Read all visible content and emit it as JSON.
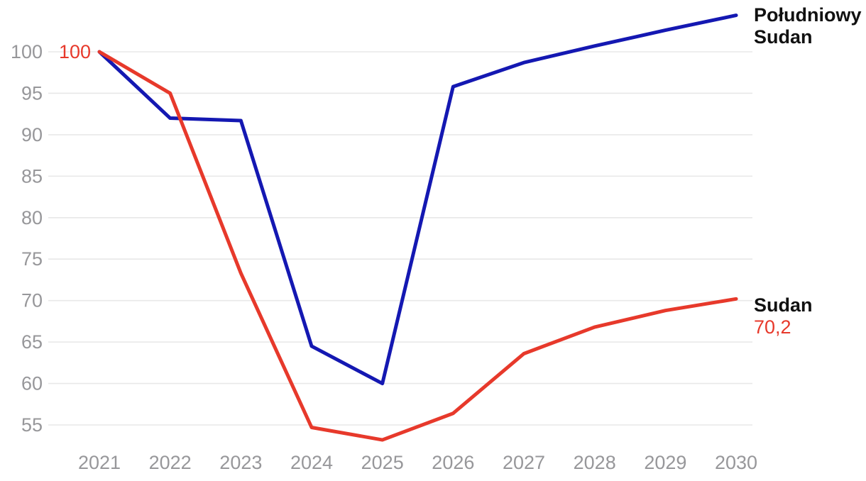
{
  "chart_data": {
    "type": "line",
    "title": "",
    "xlabel": "",
    "ylabel": "",
    "x": [
      2021,
      2022,
      2023,
      2024,
      2025,
      2026,
      2027,
      2028,
      2029,
      2030
    ],
    "series": [
      {
        "name": "Południowy Sudan",
        "color": "#1418b2",
        "values": [
          100,
          92,
          91.7,
          64.5,
          60,
          95.8,
          98.7,
          100.7,
          102.6,
          104.4
        ]
      },
      {
        "name": "Sudan",
        "color": "#e7392b",
        "values": [
          100,
          95,
          73.3,
          54.7,
          53.2,
          56.4,
          63.6,
          66.8,
          68.8,
          70.2
        ]
      }
    ],
    "yticks": [
      55,
      60,
      65,
      70,
      75,
      80,
      85,
      90,
      95,
      100
    ],
    "ylim": [
      52,
      105.5
    ],
    "grid": "horizontal-only",
    "legend_position": "right-edge-inline-labels",
    "annotations": {
      "start_value_label": "100",
      "series1_label_line1": "Południowy",
      "series1_label_line2": "Sudan",
      "series2_label": "Sudan",
      "series2_end_value": "70,2"
    },
    "colors": {
      "series1_line": "#1418b2",
      "series2_line": "#e7392b",
      "gridline": "#e8e8e8",
      "tick_text": "#97979a",
      "label_text": "#111111"
    }
  }
}
